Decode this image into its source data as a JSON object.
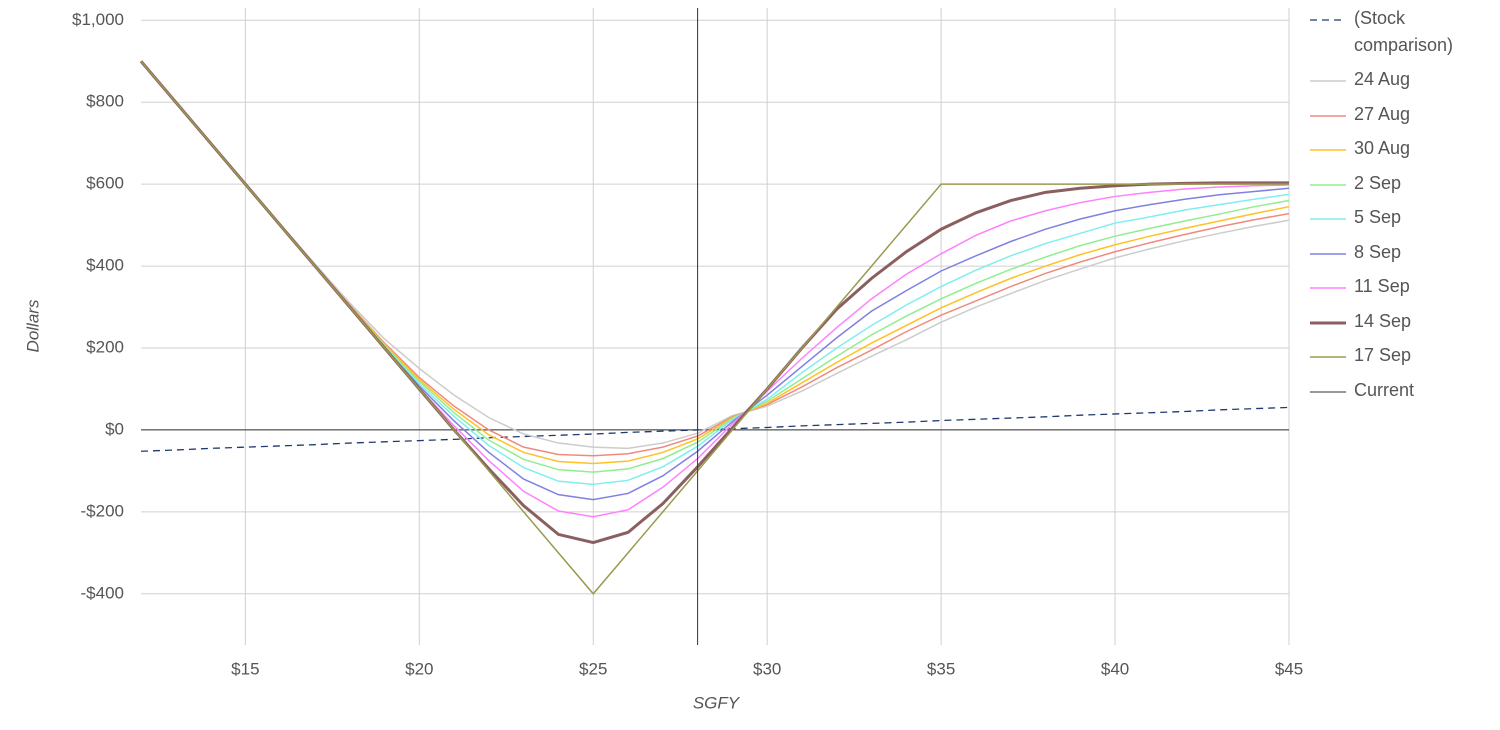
{
  "chart_data": {
    "type": "line",
    "x_label": "SGFY",
    "y_label": "Dollars",
    "x": [
      12,
      13,
      14,
      15,
      16,
      17,
      18,
      19,
      20,
      21,
      22,
      23,
      24,
      25,
      26,
      27,
      28,
      29,
      30,
      31,
      32,
      33,
      34,
      35,
      36,
      37,
      38,
      39,
      40,
      41,
      42,
      43,
      44,
      45
    ],
    "xlim": [
      12,
      45
    ],
    "ylim": [
      -525,
      1030
    ],
    "xticks": [
      {
        "value": 15,
        "label": "$15"
      },
      {
        "value": 20,
        "label": "$20"
      },
      {
        "value": 25,
        "label": "$25"
      },
      {
        "value": 30,
        "label": "$30"
      },
      {
        "value": 35,
        "label": "$35"
      },
      {
        "value": 40,
        "label": "$40"
      },
      {
        "value": 45,
        "label": "$45"
      }
    ],
    "yticks": [
      {
        "value": -400,
        "label": "-$400"
      },
      {
        "value": -200,
        "label": "-$200"
      },
      {
        "value": 0,
        "label": "$0"
      },
      {
        "value": 200,
        "label": "$200"
      },
      {
        "value": 400,
        "label": "$400"
      },
      {
        "value": 600,
        "label": "$600"
      },
      {
        "value": 800,
        "label": "$800"
      },
      {
        "value": 1000,
        "label": "$1,000"
      }
    ],
    "grid": true,
    "series": [
      {
        "name": "(Stock comparison)",
        "color": "#1f3a6e",
        "dashed": true,
        "line_width": 1.3,
        "values": [
          -52,
          -49,
          -45,
          -42,
          -39,
          -36,
          -32,
          -29,
          -26,
          -23,
          -19,
          -16,
          -13,
          -10,
          -6,
          -3,
          0,
          3,
          6,
          10,
          13,
          16,
          19,
          23,
          26,
          29,
          32,
          36,
          39,
          42,
          45,
          49,
          52,
          55
        ]
      },
      {
        "name": "24 Aug",
        "color": "#cccccc",
        "line_width": 1.5,
        "values": [
          900,
          800,
          700,
          601,
          502,
          405,
          310,
          222,
          150,
          85,
          30,
          -10,
          -32,
          -42,
          -45,
          -32,
          -8,
          35,
          58,
          95,
          138,
          180,
          220,
          263,
          300,
          333,
          365,
          393,
          420,
          442,
          462,
          480,
          497,
          512
        ]
      },
      {
        "name": "27 Aug",
        "color": "#f08a80",
        "line_width": 1.5,
        "values": [
          900,
          800,
          700,
          600,
          501,
          402,
          305,
          212,
          128,
          58,
          0,
          -42,
          -60,
          -63,
          -58,
          -42,
          -15,
          32,
          62,
          105,
          152,
          195,
          240,
          280,
          315,
          350,
          382,
          410,
          435,
          457,
          477,
          496,
          513,
          528
        ]
      },
      {
        "name": "30 Aug",
        "color": "#ffc125",
        "line_width": 1.5,
        "values": [
          900,
          800,
          700,
          600,
          500,
          401,
          303,
          209,
          123,
          50,
          -12,
          -55,
          -77,
          -82,
          -76,
          -55,
          -22,
          30,
          65,
          115,
          165,
          212,
          255,
          298,
          335,
          370,
          400,
          428,
          452,
          473,
          492,
          510,
          528,
          545
        ]
      },
      {
        "name": "2 Sep",
        "color": "#90ee90",
        "line_width": 1.5,
        "values": [
          900,
          800,
          700,
          600,
          500,
          401,
          302,
          206,
          118,
          42,
          -25,
          -72,
          -97,
          -103,
          -95,
          -70,
          -30,
          28,
          70,
          125,
          180,
          232,
          278,
          320,
          358,
          392,
          422,
          450,
          473,
          492,
          510,
          527,
          545,
          560
        ]
      },
      {
        "name": "5 Sep",
        "color": "#80eeee",
        "line_width": 1.5,
        "values": [
          900,
          800,
          700,
          600,
          500,
          400,
          301,
          203,
          112,
          33,
          -38,
          -92,
          -125,
          -133,
          -123,
          -90,
          -40,
          25,
          75,
          140,
          200,
          255,
          305,
          350,
          390,
          425,
          455,
          480,
          505,
          520,
          537,
          550,
          563,
          575
        ]
      },
      {
        "name": "8 Sep",
        "color": "#8080e0",
        "line_width": 1.5,
        "values": [
          900,
          800,
          700,
          600,
          500,
          400,
          300,
          201,
          107,
          22,
          -55,
          -120,
          -158,
          -170,
          -155,
          -112,
          -52,
          20,
          85,
          155,
          225,
          290,
          340,
          388,
          425,
          460,
          490,
          515,
          535,
          550,
          563,
          574,
          582,
          590
        ]
      },
      {
        "name": "11 Sep",
        "color": "#ff80ff",
        "line_width": 1.5,
        "values": [
          900,
          800,
          700,
          600,
          500,
          400,
          300,
          200,
          102,
          10,
          -75,
          -150,
          -198,
          -212,
          -195,
          -140,
          -70,
          15,
          95,
          175,
          250,
          320,
          380,
          430,
          475,
          510,
          535,
          555,
          570,
          580,
          588,
          593,
          596,
          598
        ]
      },
      {
        "name": "14 Sep",
        "color": "#8b5f5f",
        "line_width": 3,
        "values": [
          900,
          800,
          700,
          600,
          500,
          400,
          300,
          200,
          100,
          0,
          -95,
          -185,
          -255,
          -275,
          -250,
          -180,
          -90,
          5,
          100,
          200,
          295,
          370,
          435,
          490,
          530,
          560,
          580,
          590,
          596,
          600,
          602,
          603,
          603,
          603
        ]
      },
      {
        "name": "17 Sep",
        "color": "#9a9a50",
        "line_width": 1.5,
        "values": [
          900,
          800,
          700,
          600,
          500,
          400,
          300,
          200,
          100,
          0,
          -100,
          -200,
          -300,
          -400,
          -300,
          -200,
          -100,
          0,
          100,
          200,
          300,
          400,
          500,
          600,
          600,
          600,
          600,
          600,
          600,
          600,
          600,
          600,
          600,
          600
        ]
      }
    ],
    "current": {
      "name": "Current",
      "x": 28,
      "color": "#333333"
    }
  }
}
